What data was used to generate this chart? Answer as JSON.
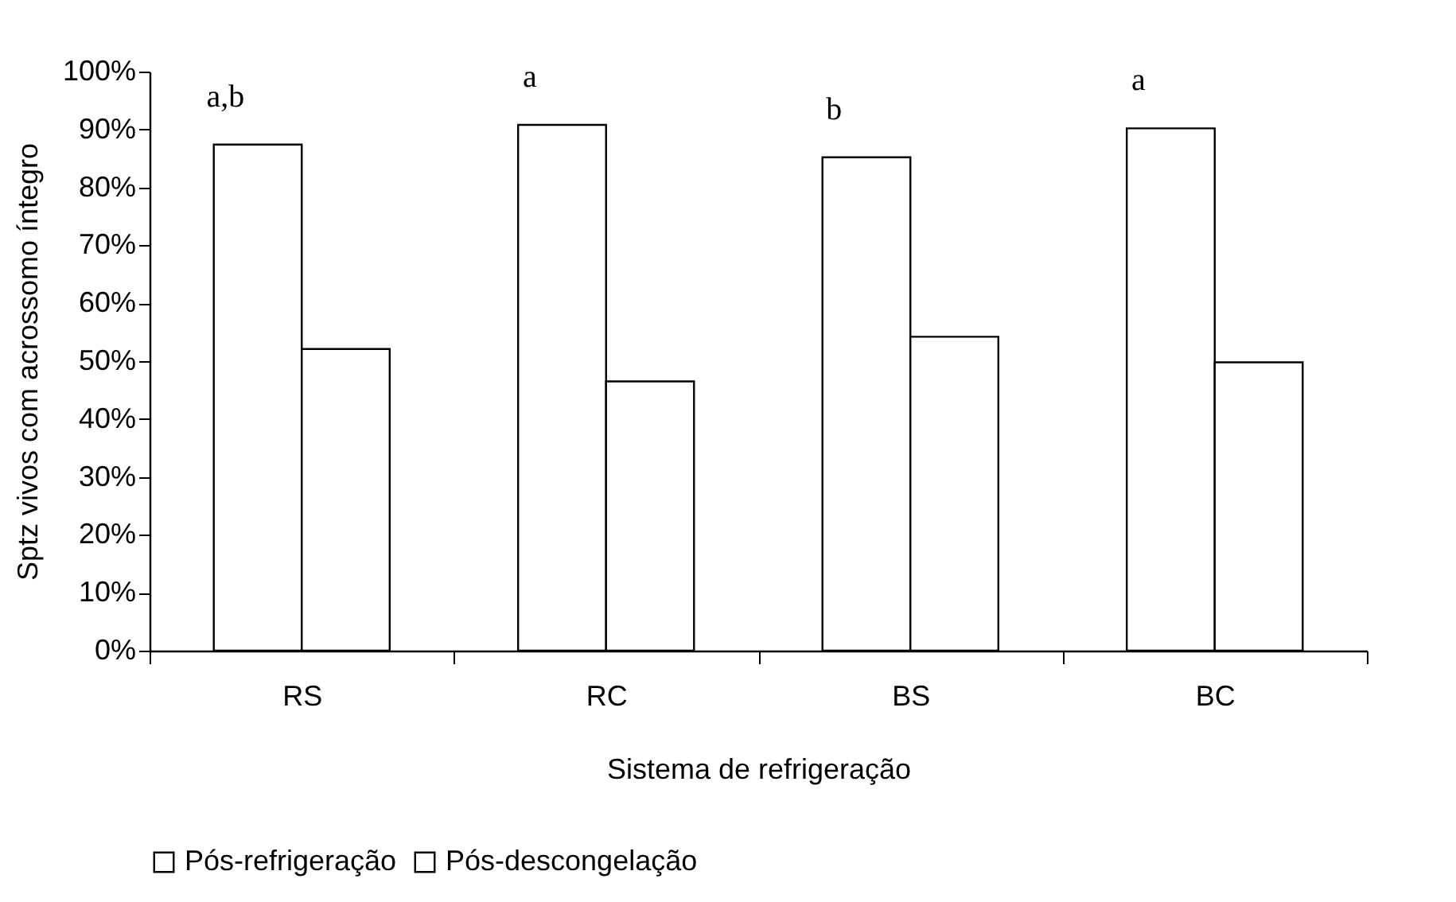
{
  "chart_data": {
    "type": "bar",
    "xlabel": "Sistema de refrigeração",
    "ylabel": "Sptz vivos com acrossomo íntegro",
    "categories": [
      "RS",
      "RC",
      "BS",
      "BC"
    ],
    "series": [
      {
        "name": "Pós-refrigeração",
        "color": "#ffffff",
        "values": [
          87.4,
          90.8,
          85.2,
          90.2
        ]
      },
      {
        "name": "Pós-descongelação",
        "color": "#ffffff",
        "values": [
          52.1,
          46.5,
          54.2,
          49.8
        ]
      }
    ],
    "ylim": [
      0,
      100
    ],
    "yticks": [
      {
        "value": 0,
        "label": "0%"
      },
      {
        "value": 10,
        "label": "10%"
      },
      {
        "value": 20,
        "label": "20%"
      },
      {
        "value": 30,
        "label": "30%"
      },
      {
        "value": 40,
        "label": "40%"
      },
      {
        "value": 50,
        "label": "50%"
      },
      {
        "value": 60,
        "label": "60%"
      },
      {
        "value": 70,
        "label": "70%"
      },
      {
        "value": 80,
        "label": "80%"
      },
      {
        "value": 90,
        "label": "90%"
      },
      {
        "value": 100,
        "label": "100%"
      }
    ],
    "grid": false,
    "legend": "bottom",
    "annotations": [
      "a,b",
      "a",
      "b",
      "a"
    ]
  }
}
